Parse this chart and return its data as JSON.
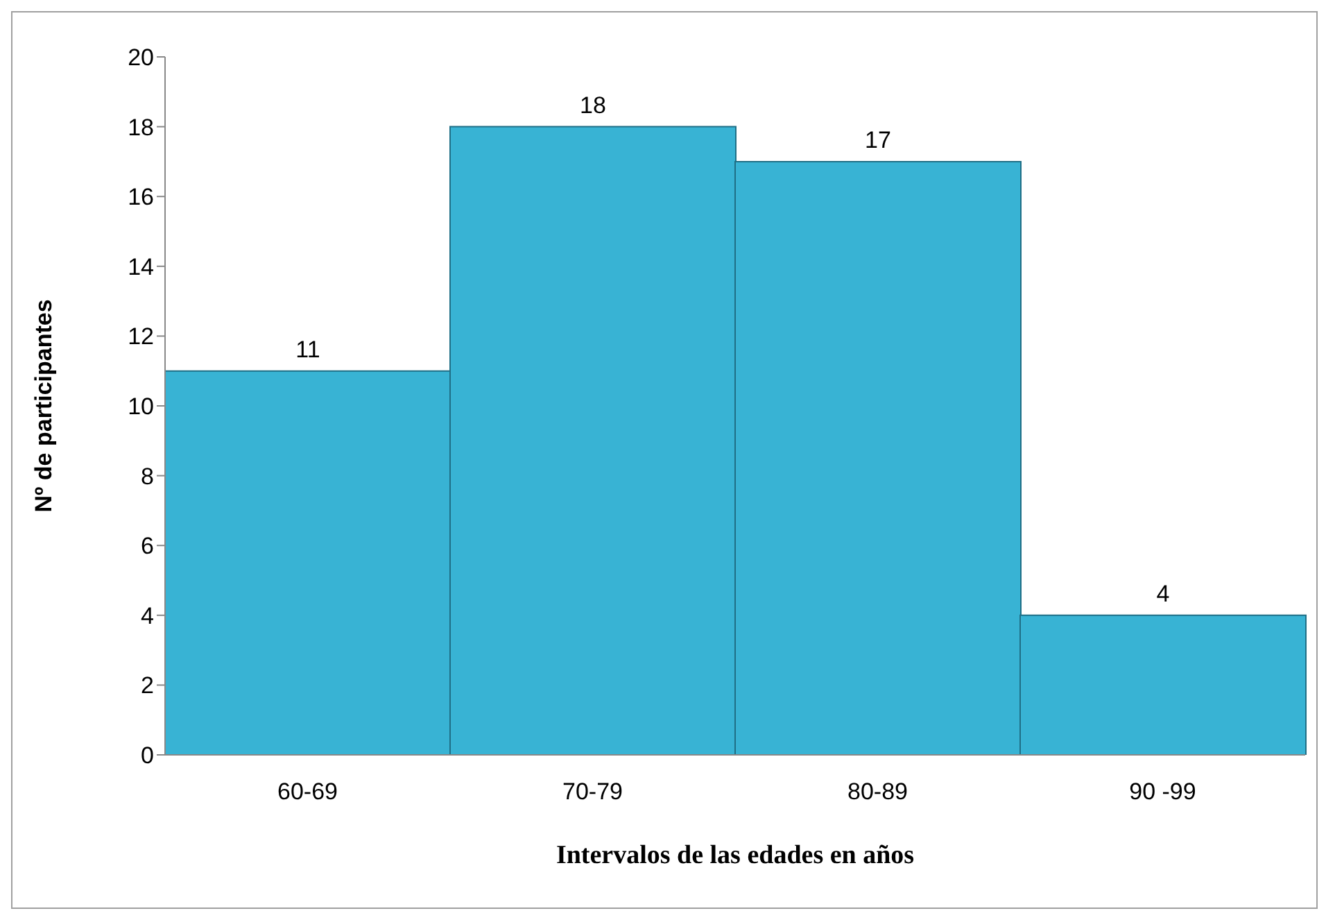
{
  "chart_data": {
    "type": "bar",
    "xlabel": "Intervalos de las edades en años",
    "ylabel": "Nº de participantes",
    "categories": [
      "60-69",
      "70-79",
      "80-89",
      "90 -99"
    ],
    "values": [
      11,
      18,
      17,
      4
    ],
    "color": "#38b3d4",
    "ylim": [
      0,
      20
    ],
    "yticks": [
      0,
      2,
      4,
      6,
      8,
      10,
      12,
      14,
      16,
      18,
      20
    ],
    "data_labels": true,
    "grid": false
  }
}
